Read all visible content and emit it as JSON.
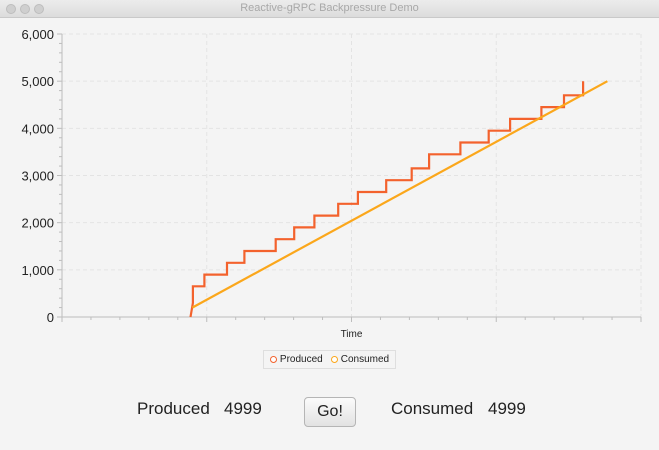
{
  "window": {
    "title": "Reactive-gRPC Backpressure Demo"
  },
  "controls": {
    "produced_label": "Produced",
    "produced_value": "4999",
    "go_label": "Go!",
    "consumed_label": "Consumed",
    "consumed_value": "4999"
  },
  "colors": {
    "produced": "#f3622d",
    "consumed": "#fba71b",
    "grid": "#e3e3e3",
    "axis": "#bdbdbd"
  },
  "chart_data": {
    "type": "line",
    "title": "",
    "xlabel": "Time",
    "ylabel": "",
    "ylim": [
      0,
      6000
    ],
    "yticks": [
      0,
      1000,
      2000,
      3000,
      4000,
      5000,
      6000
    ],
    "ytick_labels": [
      "0",
      "1,000",
      "2,000",
      "3,000",
      "4,000",
      "5,000",
      "6,000"
    ],
    "xlim": [
      0,
      1
    ],
    "x_ticks_labeled": false,
    "grid": true,
    "legend": "bottom",
    "series": [
      {
        "name": "Produced",
        "color": "#f3622d",
        "x": [
          0.222,
          0.226,
          0.226,
          0.246,
          0.246,
          0.285,
          0.285,
          0.315,
          0.315,
          0.369,
          0.369,
          0.401,
          0.401,
          0.436,
          0.436,
          0.477,
          0.477,
          0.511,
          0.511,
          0.56,
          0.56,
          0.604,
          0.604,
          0.634,
          0.634,
          0.688,
          0.688,
          0.737,
          0.737,
          0.774,
          0.774,
          0.828,
          0.828,
          0.867,
          0.867,
          0.9,
          0.9
        ],
        "y": [
          0,
          300,
          650,
          650,
          900,
          900,
          1150,
          1150,
          1400,
          1400,
          1650,
          1650,
          1900,
          1900,
          2150,
          2150,
          2400,
          2400,
          2650,
          2650,
          2900,
          2900,
          3150,
          3150,
          3450,
          3450,
          3700,
          3700,
          3950,
          3950,
          4200,
          4200,
          4450,
          4450,
          4700,
          4700,
          5000
        ]
      },
      {
        "name": "Consumed",
        "color": "#fba71b",
        "x": [
          0.225,
          0.942
        ],
        "y": [
          200,
          5000
        ]
      }
    ]
  }
}
